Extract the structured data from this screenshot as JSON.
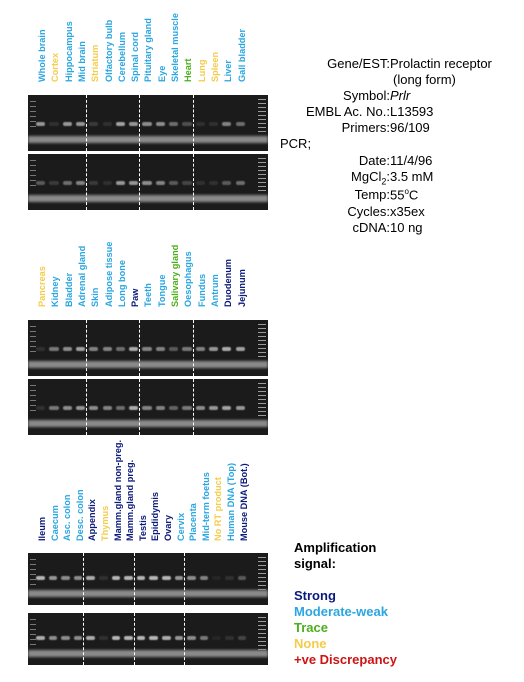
{
  "panels": [
    {
      "labels": [
        {
          "text": "Whole brain",
          "color": "#2aa6e0"
        },
        {
          "text": "Cortex",
          "color": "#f4cc4a"
        },
        {
          "text": "Hippocampus",
          "color": "#2aa6e0"
        },
        {
          "text": "Mid brain",
          "color": "#2aa6e0"
        },
        {
          "text": "Striatum",
          "color": "#f4cc4a"
        },
        {
          "text": "Olfactory bulb",
          "color": "#2aa6e0"
        },
        {
          "text": "Cerebellum",
          "color": "#2aa6e0"
        },
        {
          "text": "Spinal cord",
          "color": "#2aa6e0"
        },
        {
          "text": "Pituitary gland",
          "color": "#2aa6e0"
        },
        {
          "text": "Eye",
          "color": "#2aa6e0"
        },
        {
          "text": "Skeletal muscle",
          "color": "#2aa6e0"
        },
        {
          "text": "Heart",
          "color": "#4caf1c"
        },
        {
          "text": "Lung",
          "color": "#f4cc4a"
        },
        {
          "text": "Spleen",
          "color": "#f4cc4a"
        },
        {
          "text": "Liver",
          "color": "#2aa6e0"
        },
        {
          "text": "Gall bladder",
          "color": "#2aa6e0"
        }
      ],
      "gel1": [
        0.6,
        0.1,
        0.6,
        0.6,
        0.15,
        0.1,
        0.65,
        0.6,
        0.55,
        0.55,
        0.4,
        0.25,
        0.1,
        0.1,
        0.5,
        0.4
      ],
      "gel2": [
        0.3,
        0.15,
        0.4,
        0.5,
        0.15,
        0.1,
        0.6,
        0.6,
        0.55,
        0.5,
        0.3,
        0.2,
        0.1,
        0.1,
        0.3,
        0.4
      ],
      "dividers": [
        4,
        8,
        12
      ]
    },
    {
      "labels": [
        {
          "text": "Pancreas",
          "color": "#f4cc4a"
        },
        {
          "text": "Kidney",
          "color": "#2aa6e0"
        },
        {
          "text": "Bladder",
          "color": "#2aa6e0"
        },
        {
          "text": "Adrenal gland",
          "color": "#2aa6e0"
        },
        {
          "text": "Skin",
          "color": "#2aa6e0"
        },
        {
          "text": "Adipose tissue",
          "color": "#2aa6e0"
        },
        {
          "text": "Long bone",
          "color": "#2aa6e0"
        },
        {
          "text": "Paw",
          "color": "#0b1a7a"
        },
        {
          "text": "Teeth",
          "color": "#2aa6e0"
        },
        {
          "text": "Tongue",
          "color": "#2aa6e0"
        },
        {
          "text": "Salivary gland",
          "color": "#4caf1c"
        },
        {
          "text": "Oesophagus",
          "color": "#2aa6e0"
        },
        {
          "text": "Fundus",
          "color": "#2aa6e0"
        },
        {
          "text": "Antrum",
          "color": "#2aa6e0"
        },
        {
          "text": "Duodenum",
          "color": "#0b1a7a"
        },
        {
          "text": "Jejunum",
          "color": "#0b1a7a"
        }
      ],
      "gel1": [
        0.1,
        0.45,
        0.55,
        0.65,
        0.5,
        0.5,
        0.4,
        0.7,
        0.5,
        0.5,
        0.3,
        0.45,
        0.5,
        0.6,
        0.7,
        0.65
      ],
      "gel2": [
        0.1,
        0.45,
        0.55,
        0.6,
        0.55,
        0.5,
        0.4,
        0.7,
        0.5,
        0.5,
        0.35,
        0.45,
        0.55,
        0.6,
        0.65,
        0.6
      ],
      "dividers": [
        4,
        8,
        12
      ]
    },
    {
      "labels": [
        {
          "text": "Ileum",
          "color": "#0b1a7a"
        },
        {
          "text": "Caecum",
          "color": "#2aa6e0"
        },
        {
          "text": "Asc. colon",
          "color": "#2aa6e0"
        },
        {
          "text": "Desc. colon",
          "color": "#2aa6e0"
        },
        {
          "text": "Appendix",
          "color": "#0b1a7a"
        },
        {
          "text": "Thymus",
          "color": "#f4cc4a"
        },
        {
          "text": "Mamm.gland non-preg.",
          "color": "#0b1a7a"
        },
        {
          "text": "Mamm.gland preg.",
          "color": "#0b1a7a"
        },
        {
          "text": "Testis",
          "color": "#0b1a7a"
        },
        {
          "text": "Epididymis",
          "color": "#0b1a7a"
        },
        {
          "text": "Ovary",
          "color": "#0b1a7a"
        },
        {
          "text": "Cervix",
          "color": "#2aa6e0"
        },
        {
          "text": "Placenta",
          "color": "#2aa6e0"
        },
        {
          "text": "Mid-term foetus",
          "color": "#2aa6e0"
        },
        {
          "text": "No RT product",
          "color": "#f4cc4a"
        },
        {
          "text": "Human DNA (Top)",
          "color": "#2aa6e0"
        },
        {
          "text": "Mouse DNA (Bot.)",
          "color": "#0b1a7a"
        }
      ],
      "gel1": [
        0.75,
        0.6,
        0.55,
        0.55,
        0.7,
        0.1,
        0.75,
        0.75,
        0.75,
        0.75,
        0.75,
        0.6,
        0.55,
        0.5,
        0.05,
        0.1,
        0.3
      ],
      "gel2": [
        0.7,
        0.55,
        0.55,
        0.55,
        0.7,
        0.1,
        0.75,
        0.75,
        0.75,
        0.75,
        0.7,
        0.6,
        0.55,
        0.45,
        0.05,
        0.1,
        0.2
      ],
      "dividers": [
        4,
        8,
        12
      ]
    }
  ],
  "info": {
    "gene_key": "Gene/EST:",
    "gene_val_1": "Prolactin receptor",
    "gene_val_2": "(long form)",
    "symbol_key": "Symbol:",
    "symbol_val": "Prlr",
    "embl_key": "EMBL Ac. No.:",
    "embl_val": "L13593",
    "primers_key": "Primers:",
    "primers_val": "96/109",
    "pcr_key": "PCR;",
    "date_key": "Date:",
    "date_val": "11/4/96",
    "mgcl_key_a": "MgCl",
    "mgcl_key_sub": "2",
    "mgcl_key_b": ":",
    "mgcl_val": "3.5 mM",
    "temp_key": "Temp:",
    "temp_val_a": "55",
    "temp_val_sup": "o",
    "temp_val_b": "C",
    "cycles_key": "Cycles:",
    "cycles_val": "x35ex",
    "cdna_key": "cDNA:",
    "cdna_val": "10 ng"
  },
  "legend": {
    "title_1": "Amplification",
    "title_2": "signal:",
    "items": [
      {
        "text": "Strong",
        "color": "#0b1a7a"
      },
      {
        "text": "Moderate-weak",
        "color": "#2aa6e0"
      },
      {
        "text": "Trace",
        "color": "#4caf1c"
      },
      {
        "text": "None",
        "color": "#f4cc4a"
      },
      {
        "text": "+ve Discrepancy",
        "color": "#cc1414"
      }
    ]
  }
}
